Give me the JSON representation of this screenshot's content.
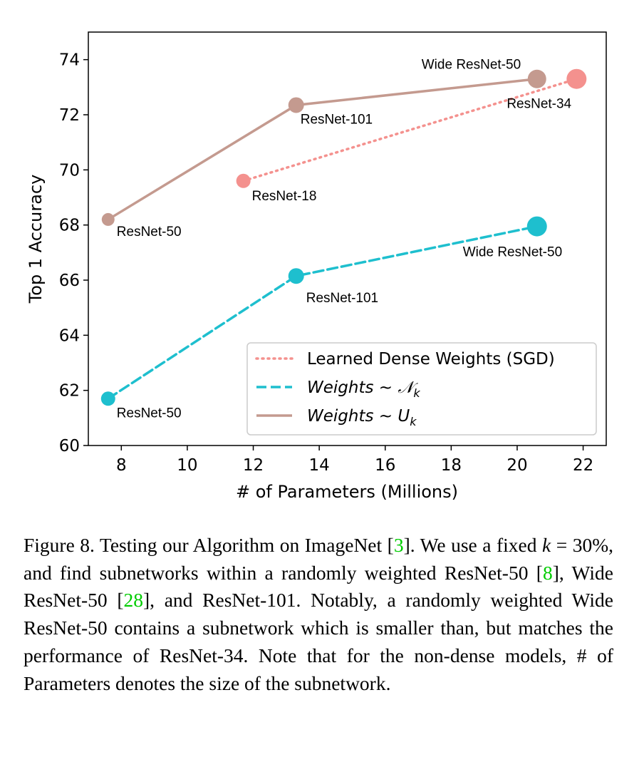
{
  "chart_data": {
    "type": "line",
    "xlabel": "# of Parameters (Millions)",
    "ylabel": "Top 1 Accuracy",
    "xlim": [
      7.0,
      22.7
    ],
    "ylim": [
      60,
      75
    ],
    "xticks": [
      8,
      10,
      12,
      14,
      16,
      18,
      20,
      22
    ],
    "yticks": [
      60,
      62,
      64,
      66,
      68,
      70,
      72,
      74
    ],
    "grid": false,
    "legend_position": "lower-right",
    "series": [
      {
        "name": "Learned Dense Weights (SGD)",
        "style": "dotted",
        "color": "#f4918e",
        "points": [
          {
            "x": 11.7,
            "y": 69.6,
            "label": "ResNet-18"
          },
          {
            "x": 21.8,
            "y": 73.3,
            "label": "ResNet-34"
          }
        ]
      },
      {
        "name": "Weights ~ 𝒩",
        "subscript": "k",
        "style": "dashed",
        "color": "#1ebfce",
        "points": [
          {
            "x": 7.6,
            "y": 61.7,
            "label": "ResNet-50"
          },
          {
            "x": 13.3,
            "y": 66.15,
            "label": "ResNet-101"
          },
          {
            "x": 20.6,
            "y": 67.95,
            "label": "Wide ResNet-50"
          }
        ]
      },
      {
        "name": "Weights ~ U",
        "subscript": "k",
        "style": "solid",
        "color": "#c49a8f",
        "points": [
          {
            "x": 7.6,
            "y": 68.2,
            "label": "ResNet-50"
          },
          {
            "x": 13.3,
            "y": 72.35,
            "label": "ResNet-101"
          },
          {
            "x": 20.6,
            "y": 73.3,
            "label": "Wide ResNet-50"
          }
        ]
      }
    ]
  },
  "caption": {
    "p1": "Figure 8. Testing our Algorithm on ImageNet [",
    "c1": "3",
    "p2": "]. We use a fixed ",
    "k": "k",
    "eq": " = 30%",
    "p3": ", and find subnetworks within a randomly weighted ResNet-50 [",
    "c2": "8",
    "p4": "], Wide ResNet-50 [",
    "c3": "28",
    "p5": "], and ResNet-101. Notably, a randomly weighted Wide ResNet-50 contains a subnetwork which is smaller than, but matches the performance of ResNet-34. Note that for the non-dense models, # of Parameters denotes the size of the subnetwork."
  }
}
